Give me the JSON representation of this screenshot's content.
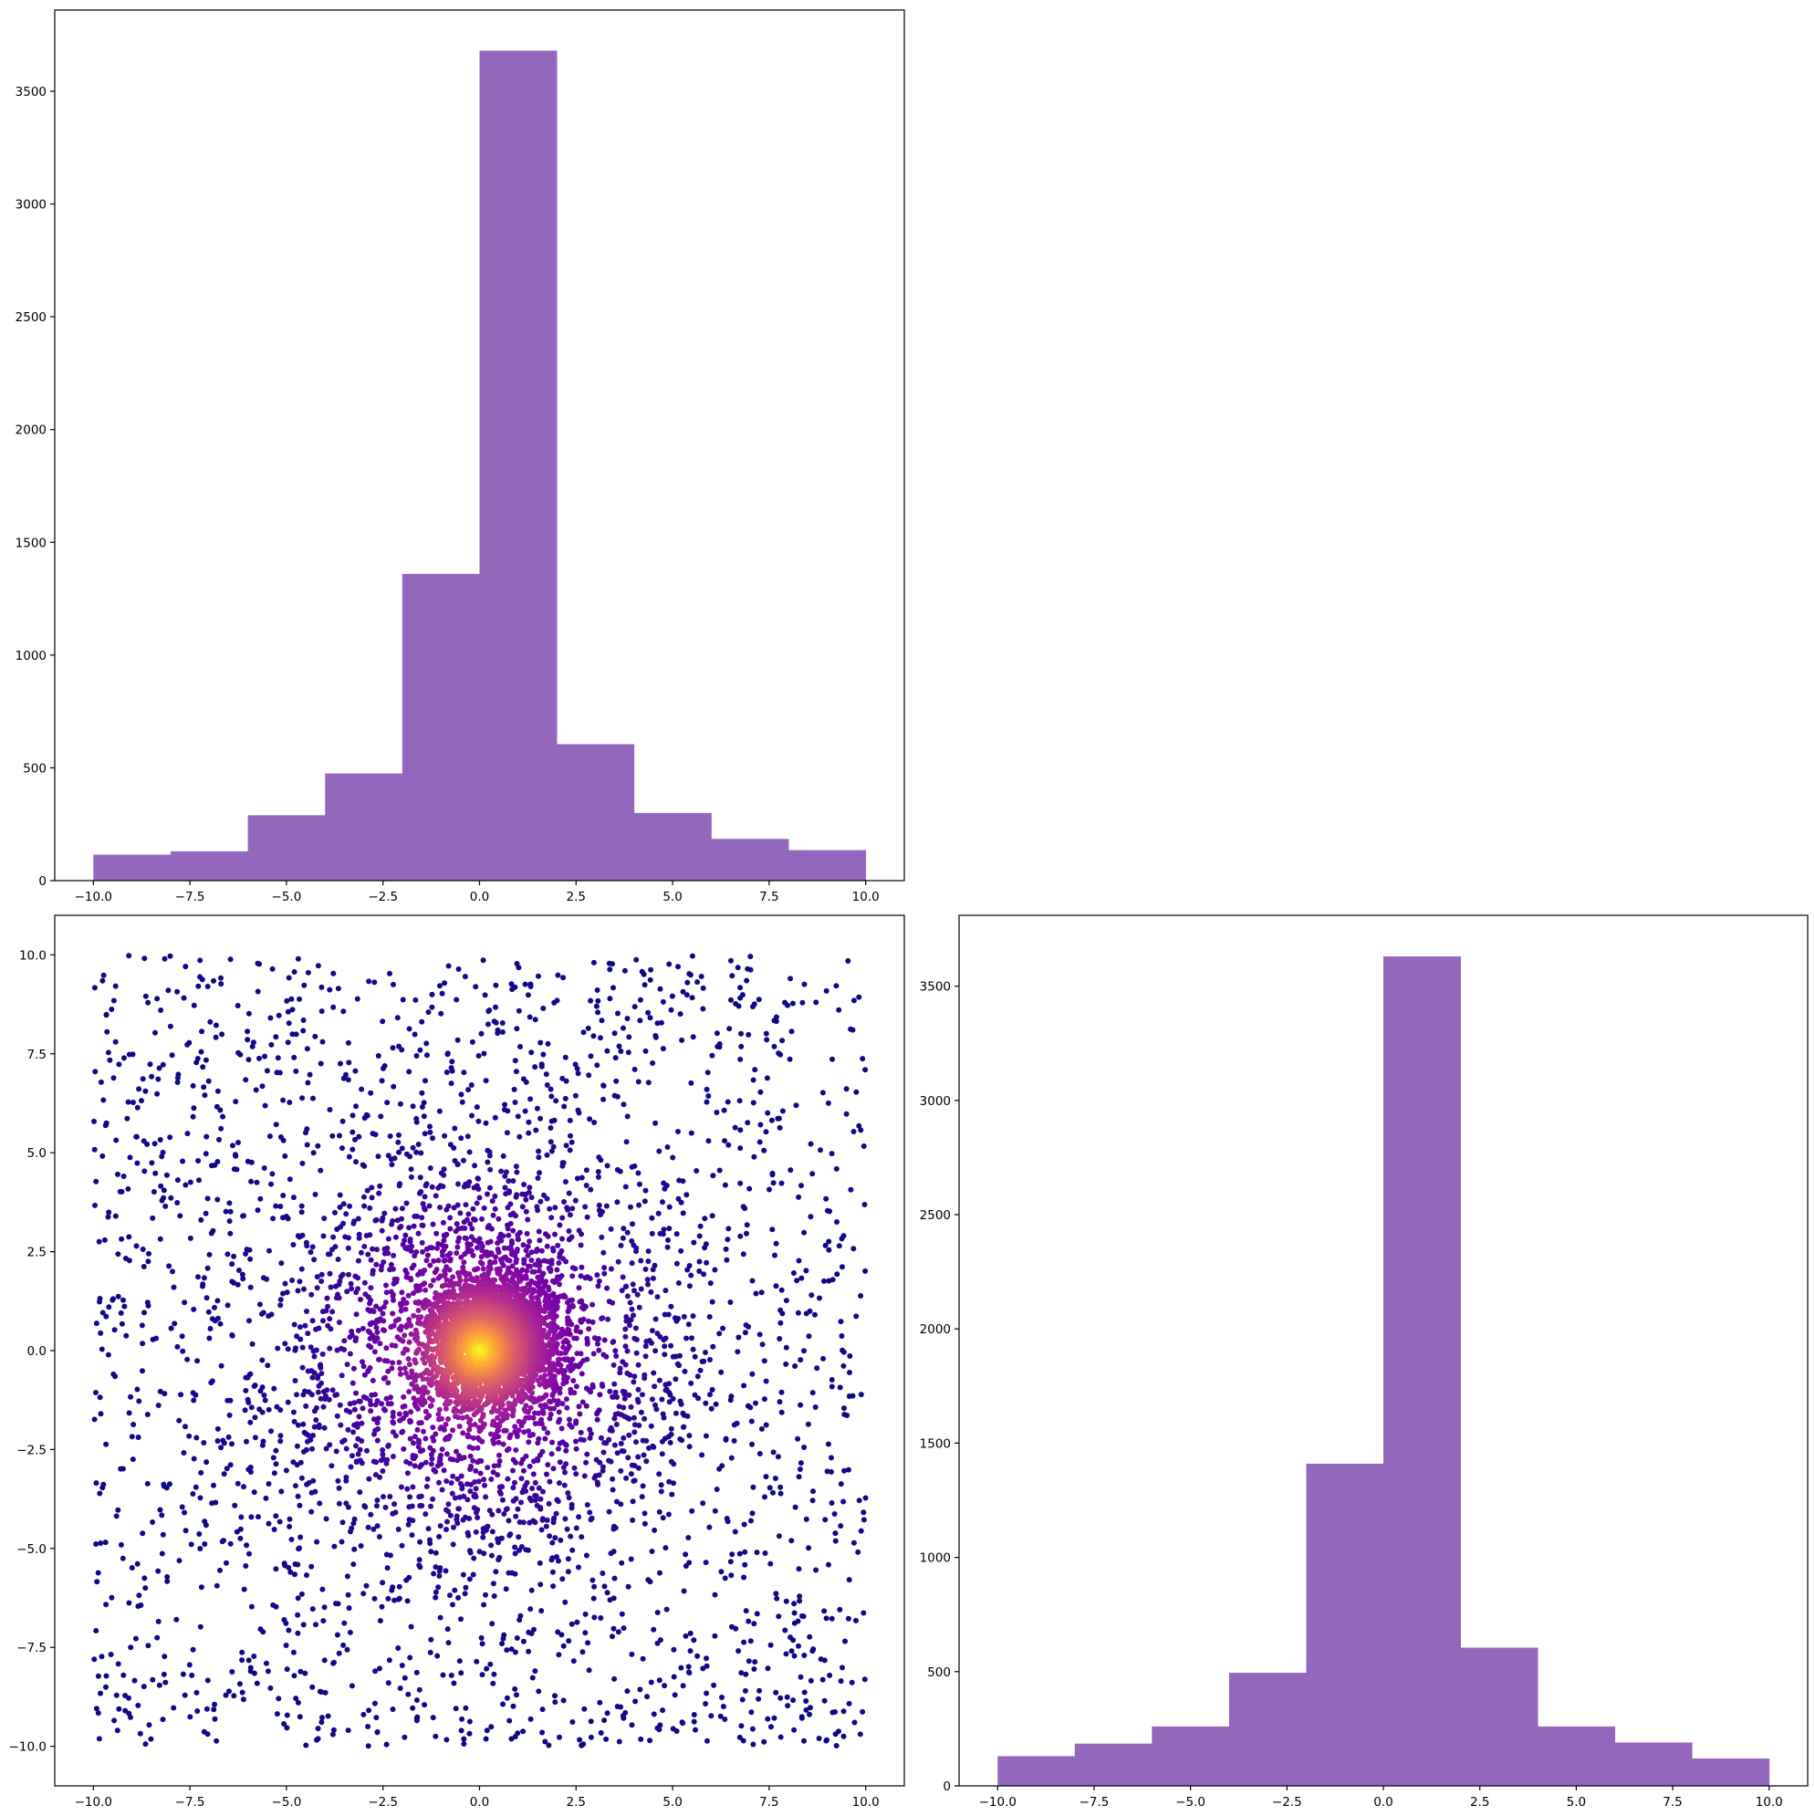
{
  "chart_data": [
    {
      "id": "hist_top",
      "type": "bar",
      "bar_style": "histogram",
      "title": "",
      "xlabel": "",
      "ylabel": "",
      "bin_edges": [
        -10,
        -8,
        -6,
        -4,
        -2,
        0,
        2,
        4,
        6,
        8,
        10
      ],
      "values": [
        115,
        130,
        290,
        475,
        1360,
        3680,
        605,
        300,
        185,
        135
      ],
      "xlim": [
        -11,
        11
      ],
      "ylim": [
        0,
        3860
      ],
      "xticks": [
        -10.0,
        -7.5,
        -5.0,
        -2.5,
        0.0,
        2.5,
        5.0,
        7.5,
        10.0
      ],
      "xtick_labels": [
        "−10.0",
        "−7.5",
        "−5.0",
        "−2.5",
        "0.0",
        "2.5",
        "5.0",
        "7.5",
        "10.0"
      ],
      "yticks": [
        0,
        500,
        1000,
        1500,
        2000,
        2500,
        3000,
        3500
      ],
      "ytick_labels": [
        "0",
        "500",
        "1000",
        "1500",
        "2000",
        "2500",
        "3000",
        "3500"
      ],
      "color": "#9467bd",
      "grid": false
    },
    {
      "id": "scatter",
      "type": "scatter",
      "title": "",
      "xlabel": "",
      "ylabel": "",
      "description_of_points": "approximately 7000 points; density colored with the plasma colormap (dark purple = sparse, yellow = dense); dense core near (0, 0), sparse uniform background over [-10, 10] x [-10, 10]",
      "x_range": [
        -10,
        10
      ],
      "y_range": [
        -10,
        10
      ],
      "n_points": 7000,
      "colormap": "plasma",
      "center": [
        0,
        0
      ],
      "xlim": [
        -11,
        11
      ],
      "ylim": [
        -11,
        11
      ],
      "xticks": [
        -10.0,
        -7.5,
        -5.0,
        -2.5,
        0.0,
        2.5,
        5.0,
        7.5,
        10.0
      ],
      "xtick_labels": [
        "−10.0",
        "−7.5",
        "−5.0",
        "−2.5",
        "0.0",
        "2.5",
        "5.0",
        "7.5",
        "10.0"
      ],
      "yticks": [
        -10.0,
        -7.5,
        -5.0,
        -2.5,
        0.0,
        2.5,
        5.0,
        7.5,
        10.0
      ],
      "ytick_labels": [
        "−10.0",
        "−7.5",
        "−5.0",
        "−2.5",
        "0.0",
        "2.5",
        "5.0",
        "7.5",
        "10.0"
      ],
      "grid": false
    },
    {
      "id": "hist_right",
      "type": "bar",
      "bar_style": "histogram",
      "title": "",
      "xlabel": "",
      "ylabel": "",
      "bin_edges": [
        -10,
        -8,
        -6,
        -4,
        -2,
        0,
        2,
        4,
        6,
        8,
        10
      ],
      "values": [
        130,
        185,
        260,
        495,
        1410,
        3630,
        605,
        260,
        190,
        120
      ],
      "xlim": [
        -11,
        11
      ],
      "ylim": [
        0,
        3810
      ],
      "xticks": [
        -10.0,
        -7.5,
        -5.0,
        -2.5,
        0.0,
        2.5,
        5.0,
        7.5,
        10.0
      ],
      "xtick_labels": [
        "−10.0",
        "−7.5",
        "−5.0",
        "−2.5",
        "0.0",
        "2.5",
        "5.0",
        "7.5",
        "10.0"
      ],
      "yticks": [
        0,
        500,
        1000,
        1500,
        2000,
        2500,
        3000,
        3500
      ],
      "ytick_labels": [
        "0",
        "500",
        "1000",
        "1500",
        "2000",
        "2500",
        "3000",
        "3500"
      ],
      "color": "#9467bd",
      "grid": false
    }
  ]
}
